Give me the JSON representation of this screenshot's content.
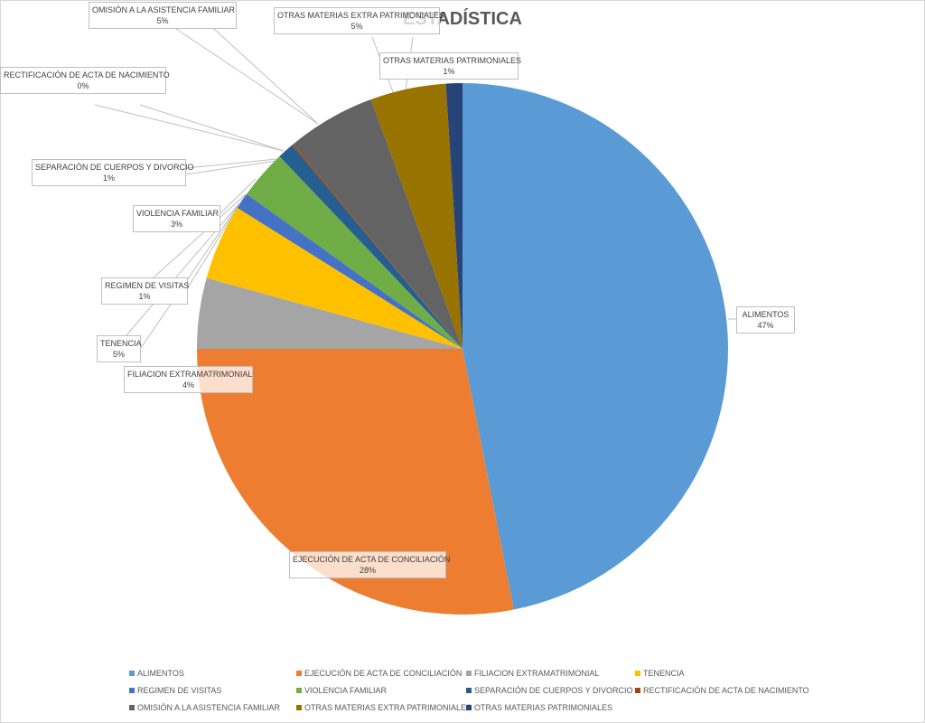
{
  "chart_data": {
    "type": "pie",
    "title": "ESTADÍSTICA",
    "legend_position": "bottom",
    "start_angle": "top, clockwise",
    "slices": [
      {
        "label": "ALIMENTOS",
        "value": 46.9,
        "display": "47%",
        "color": "#5B9BD5"
      },
      {
        "label": "EJECUCIÓN DE ACTA DE CONCILIACIÓN",
        "value": 28.1,
        "display": "28%",
        "color": "#ED7D31"
      },
      {
        "label": "FILIACION EXTRAMATRIMONIAL",
        "value": 4.3,
        "display": "4%",
        "color": "#A5A5A5"
      },
      {
        "label": "TENENCIA",
        "value": 4.6,
        "display": "5%",
        "color": "#FFC000"
      },
      {
        "label": "REGIMEN DE VISITAS",
        "value": 1.0,
        "display": "1%",
        "color": "#4472C4"
      },
      {
        "label": "VIOLENCIA FAMILIAR",
        "value": 3.0,
        "display": "3%",
        "color": "#70AD47"
      },
      {
        "label": "SEPARACIÓN DE CUERPOS Y DIVORCIO",
        "value": 1.0,
        "display": "1%",
        "color": "#255E91"
      },
      {
        "label": "RECTIFICACIÓN DE ACTA DE NACIMIENTO",
        "value": 0.1,
        "display": "0%",
        "color": "#9E480E"
      },
      {
        "label": "OMISIÓN A LA ASISTENCIA FAMILIAR",
        "value": 5.4,
        "display": "5%",
        "color": "#636363"
      },
      {
        "label": "OTRAS MATERIAS EXTRA PATRIMONIALES",
        "value": 4.6,
        "display": "5%",
        "color": "#997300"
      },
      {
        "label": "OTRAS MATERIAS PATRIMONIALES",
        "value": 1.0,
        "display": "1%",
        "color": "#264478"
      }
    ]
  }
}
